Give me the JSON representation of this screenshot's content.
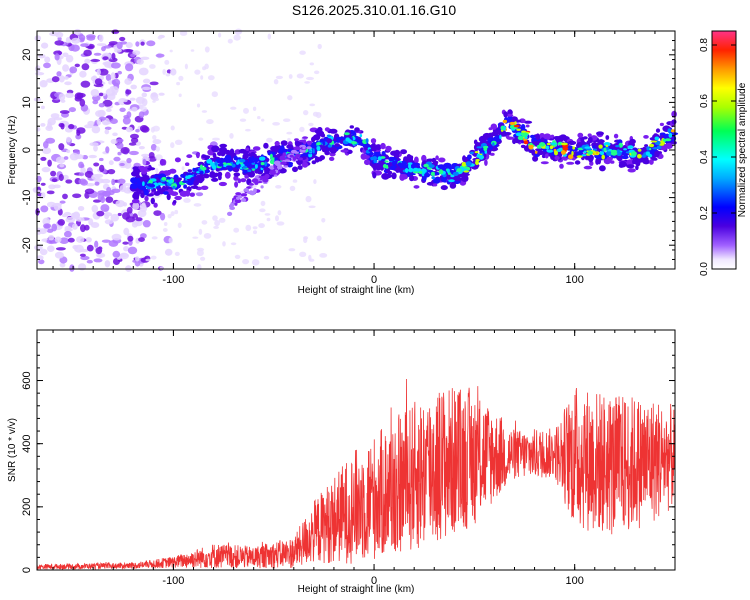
{
  "title": "S126.2025.310.01.16.G10",
  "chart_data": [
    {
      "type": "heatmap",
      "name": "spectrogram",
      "xlabel": "Height of straight line (km)",
      "ylabel": "Frequency (Hz)",
      "xlim": [
        -168,
        150
      ],
      "ylim": [
        -25,
        25
      ],
      "xticks": [
        -100,
        0,
        100
      ],
      "yticks": [
        -20,
        -10,
        0,
        10,
        20
      ],
      "xtick_labels": [
        "-100",
        "0",
        "100"
      ],
      "ytick_labels": [
        "-20",
        "-10",
        "0",
        "10",
        "20"
      ],
      "colorbar": {
        "label": "Normalized spectral amplitude",
        "range": [
          0.0,
          0.85
        ],
        "ticks": [
          0.0,
          0.2,
          0.4,
          0.6,
          0.8
        ],
        "tick_labels": [
          "0.0",
          "0.2",
          "0.4",
          "0.6",
          "0.8"
        ]
      },
      "ridge": [
        {
          "x": -168,
          "y": 0
        },
        {
          "x": -115,
          "y": -7
        },
        {
          "x": -100,
          "y": -7
        },
        {
          "x": -80,
          "y": -3
        },
        {
          "x": -60,
          "y": -3
        },
        {
          "x": -40,
          "y": -1
        },
        {
          "x": -20,
          "y": 2
        },
        {
          "x": -5,
          "y": 2
        },
        {
          "x": 0,
          "y": -2
        },
        {
          "x": 20,
          "y": -4
        },
        {
          "x": 40,
          "y": -5
        },
        {
          "x": 55,
          "y": 0
        },
        {
          "x": 67,
          "y": 6
        },
        {
          "x": 80,
          "y": 1
        },
        {
          "x": 100,
          "y": 0
        },
        {
          "x": 120,
          "y": 0
        },
        {
          "x": 135,
          "y": -1
        },
        {
          "x": 150,
          "y": 4
        }
      ]
    },
    {
      "type": "line",
      "name": "snr",
      "xlabel": "Height of straight line (km)",
      "ylabel": "SNR (10 * v/v)",
      "xlim": [
        -168,
        150
      ],
      "ylim": [
        0,
        760
      ],
      "xticks": [
        -100,
        0,
        100
      ],
      "yticks": [
        0,
        200,
        400,
        600
      ],
      "xtick_labels": [
        "-100",
        "0",
        "100"
      ],
      "ytick_labels": [
        "0",
        "200",
        "400",
        "600"
      ],
      "color": "#ee3333",
      "envelope": [
        {
          "x": -168,
          "mean": 10,
          "amp": 8
        },
        {
          "x": -120,
          "mean": 14,
          "amp": 10
        },
        {
          "x": -100,
          "mean": 25,
          "amp": 18
        },
        {
          "x": -80,
          "mean": 45,
          "amp": 40
        },
        {
          "x": -60,
          "mean": 40,
          "amp": 35
        },
        {
          "x": -40,
          "mean": 55,
          "amp": 50
        },
        {
          "x": -30,
          "mean": 120,
          "amp": 100
        },
        {
          "x": -10,
          "mean": 200,
          "amp": 180
        },
        {
          "x": 10,
          "mean": 260,
          "amp": 220
        },
        {
          "x": 30,
          "mean": 330,
          "amp": 260
        },
        {
          "x": 50,
          "mean": 360,
          "amp": 220
        },
        {
          "x": 70,
          "mean": 365,
          "amp": 80
        },
        {
          "x": 90,
          "mean": 370,
          "amp": 80
        },
        {
          "x": 100,
          "mean": 360,
          "amp": 230
        },
        {
          "x": 120,
          "mean": 330,
          "amp": 230
        },
        {
          "x": 140,
          "mean": 350,
          "amp": 200
        },
        {
          "x": 150,
          "mean": 360,
          "amp": 160
        }
      ]
    }
  ]
}
